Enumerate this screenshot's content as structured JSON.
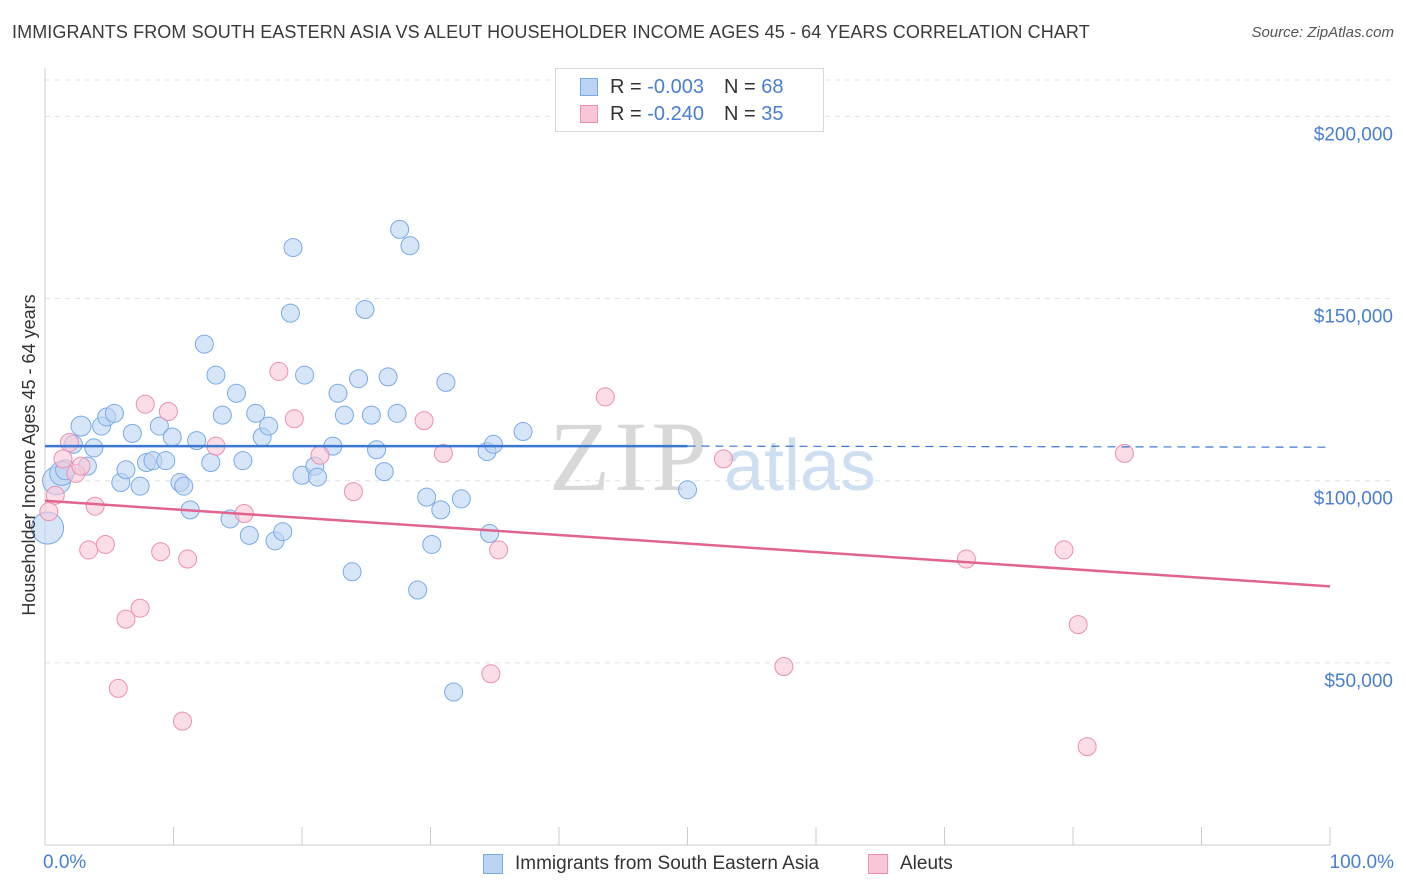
{
  "title": "IMMIGRANTS FROM SOUTH EASTERN ASIA VS ALEUT HOUSEHOLDER INCOME AGES 45 - 64 YEARS CORRELATION CHART",
  "source": "Source: ZipAtlas.com",
  "colors": {
    "blue": "#7aaae6",
    "blue_fill": "#bcd4f4",
    "blue_line": "#3b78d1",
    "pink": "#ec8fb0",
    "pink_fill": "#f8c6d7",
    "pink_line": "#e0648f",
    "axis_text": "#4a7fd0"
  },
  "legend": {
    "rows": [
      {
        "r_label": "R = ",
        "r_value": "-0.003",
        "n_label": "N = ",
        "n_value": "68"
      },
      {
        "r_label": "R = ",
        "r_value": "-0.240",
        "n_label": "N = ",
        "n_value": "35"
      }
    ]
  },
  "bottom_legend": {
    "series1": "Immigrants from South Eastern Asia",
    "series2": "Aleuts"
  },
  "x_axis": {
    "min_label": "0.0%",
    "max_label": "100.0%"
  },
  "chart_data": {
    "type": "scatter",
    "title": "IMMIGRANTS FROM SOUTH EASTERN ASIA VS ALEUT HOUSEHOLDER INCOME AGES 45 - 64 YEARS CORRELATION CHART",
    "xlabel": "",
    "ylabel": "Householder Income Ages 45 - 64 years",
    "xlim": [
      0,
      100
    ],
    "ylim": [
      0,
      210000
    ],
    "y_ticks": [
      {
        "value": 50000,
        "label": "$50,000"
      },
      {
        "value": 100000,
        "label": "$100,000"
      },
      {
        "value": 150000,
        "label": "$150,000"
      },
      {
        "value": 200000,
        "label": "$200,000"
      }
    ],
    "watermark": {
      "zip": "ZIP",
      "atlas": "atlas"
    },
    "series": [
      {
        "name": "Immigrants from South Eastern Asia",
        "r": -0.003,
        "n": 68,
        "trend": {
          "x0": 0,
          "y0": 109500,
          "x1": 50,
          "y1": 109500,
          "dash_x1": 100,
          "dash_y1": 109200
        },
        "points": [
          [
            0.2,
            87000,
            16
          ],
          [
            0.9,
            100000,
            14
          ],
          [
            1.3,
            102000,
            12
          ],
          [
            1.6,
            103000,
            10
          ],
          [
            2.2,
            110000,
            9
          ],
          [
            2.8,
            115000,
            10
          ],
          [
            3.3,
            104000,
            9
          ],
          [
            3.8,
            109000,
            9
          ],
          [
            4.4,
            115000,
            9
          ],
          [
            4.8,
            117500,
            9
          ],
          [
            5.4,
            118500,
            9
          ],
          [
            5.9,
            99500,
            9
          ],
          [
            6.3,
            103000,
            9
          ],
          [
            6.8,
            113000,
            9
          ],
          [
            7.4,
            98500,
            9
          ],
          [
            7.9,
            105000,
            9
          ],
          [
            8.4,
            105500,
            9
          ],
          [
            8.9,
            115000,
            9
          ],
          [
            9.4,
            105500,
            9
          ],
          [
            9.9,
            112000,
            9
          ],
          [
            10.5,
            99500,
            9
          ],
          [
            10.8,
            98500,
            9
          ],
          [
            11.3,
            92000,
            9
          ],
          [
            11.8,
            111000,
            9
          ],
          [
            12.4,
            137500,
            9
          ],
          [
            12.9,
            105000,
            9
          ],
          [
            13.3,
            129000,
            9
          ],
          [
            13.8,
            118000,
            9
          ],
          [
            14.4,
            89500,
            9
          ],
          [
            14.9,
            124000,
            9
          ],
          [
            15.4,
            105500,
            9
          ],
          [
            15.9,
            85000,
            9
          ],
          [
            16.4,
            118500,
            9
          ],
          [
            16.9,
            112000,
            9
          ],
          [
            17.4,
            115000,
            9
          ],
          [
            17.9,
            83500,
            9
          ],
          [
            18.5,
            86000,
            9
          ],
          [
            19.1,
            146000,
            9
          ],
          [
            19.3,
            164000,
            9
          ],
          [
            20.0,
            101500,
            9
          ],
          [
            20.2,
            129000,
            9
          ],
          [
            21.0,
            104000,
            9
          ],
          [
            21.2,
            101000,
            9
          ],
          [
            22.4,
            109500,
            9
          ],
          [
            22.8,
            124000,
            9
          ],
          [
            23.3,
            118000,
            9
          ],
          [
            23.9,
            75000,
            9
          ],
          [
            24.4,
            128000,
            9
          ],
          [
            24.9,
            147000,
            9
          ],
          [
            25.4,
            118000,
            9
          ],
          [
            25.8,
            108500,
            9
          ],
          [
            26.4,
            102500,
            9
          ],
          [
            26.7,
            128500,
            9
          ],
          [
            27.4,
            118500,
            9
          ],
          [
            27.6,
            169000,
            9
          ],
          [
            28.4,
            164500,
            9
          ],
          [
            29.0,
            70000,
            9
          ],
          [
            29.7,
            95500,
            9
          ],
          [
            30.1,
            82500,
            9
          ],
          [
            30.8,
            92000,
            9
          ],
          [
            31.2,
            127000,
            9
          ],
          [
            31.8,
            42000,
            9
          ],
          [
            32.4,
            95000,
            9
          ],
          [
            34.4,
            108000,
            9
          ],
          [
            34.6,
            85500,
            9
          ],
          [
            34.9,
            110000,
            9
          ],
          [
            37.2,
            113500,
            9
          ],
          [
            50.0,
            97500,
            9
          ]
        ]
      },
      {
        "name": "Aleuts",
        "r": -0.24,
        "n": 35,
        "trend": {
          "x0": 0,
          "y0": 94500,
          "x1": 100,
          "y1": 71000
        },
        "points": [
          [
            0.3,
            91500,
            9
          ],
          [
            0.8,
            96000,
            9
          ],
          [
            1.4,
            106000,
            9
          ],
          [
            1.9,
            110500,
            9
          ],
          [
            2.4,
            102000,
            9
          ],
          [
            2.8,
            104000,
            9
          ],
          [
            3.4,
            81000,
            9
          ],
          [
            3.9,
            93000,
            9
          ],
          [
            4.7,
            82500,
            9
          ],
          [
            5.7,
            43000,
            9
          ],
          [
            6.3,
            62000,
            9
          ],
          [
            7.4,
            65000,
            9
          ],
          [
            7.8,
            121000,
            9
          ],
          [
            9.0,
            80500,
            9
          ],
          [
            9.6,
            119000,
            9
          ],
          [
            10.7,
            34000,
            9
          ],
          [
            11.1,
            78500,
            9
          ],
          [
            13.3,
            109500,
            9
          ],
          [
            15.5,
            91000,
            9
          ],
          [
            18.2,
            130000,
            9
          ],
          [
            19.4,
            117000,
            9
          ],
          [
            21.4,
            107000,
            9
          ],
          [
            24.0,
            97000,
            9
          ],
          [
            29.5,
            116500,
            9
          ],
          [
            31.0,
            107500,
            9
          ],
          [
            34.7,
            47000,
            9
          ],
          [
            35.3,
            81000,
            9
          ],
          [
            43.6,
            123000,
            9
          ],
          [
            52.8,
            106000,
            9
          ],
          [
            57.5,
            49000,
            9
          ],
          [
            71.7,
            78500,
            9
          ],
          [
            79.3,
            81000,
            9
          ],
          [
            80.4,
            60500,
            9
          ],
          [
            81.1,
            27000,
            9
          ],
          [
            84.0,
            107500,
            9
          ]
        ]
      }
    ]
  }
}
